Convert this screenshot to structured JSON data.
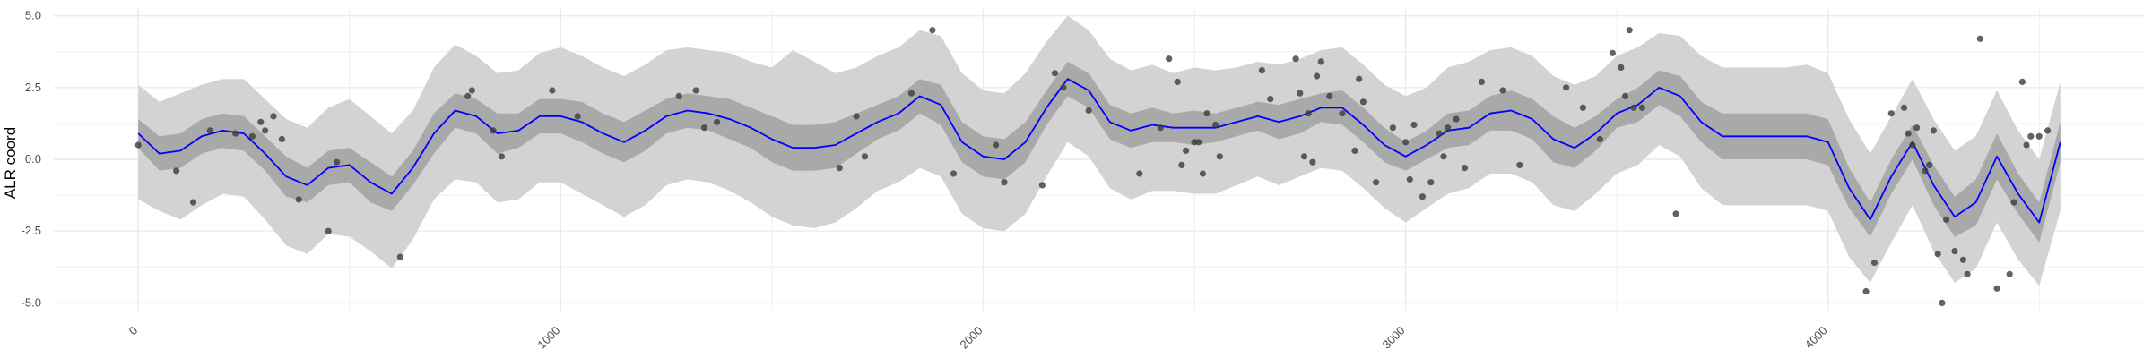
{
  "chart_data": {
    "type": "line",
    "title": "",
    "xlabel": "",
    "ylabel": "ALR coord",
    "xlim": [
      -200,
      4750
    ],
    "ylim": [
      -5.3,
      5.3
    ],
    "grid": true,
    "legend": "none",
    "x_ticks": [
      0,
      1000,
      2000,
      3000,
      4000
    ],
    "x_tick_labels": [
      "0",
      "1000",
      "2000",
      "3000",
      "4000"
    ],
    "y_ticks": [
      -5.0,
      -2.5,
      0.0,
      2.5,
      5.0
    ],
    "y_tick_labels": [
      "-5.0",
      "-2.5",
      "0.0",
      "2.5",
      "5.0"
    ],
    "colors": {
      "mean_line": "#0000ff",
      "inner_band": "#a9a9a9",
      "outer_band": "#d3d3d3",
      "points": "#3c3c3c",
      "grid": "#ebebeb"
    },
    "series": [
      {
        "kind": "mean",
        "x": [
          0,
          50,
          100,
          150,
          200,
          250,
          300,
          350,
          400,
          450,
          500,
          550,
          600,
          650,
          700,
          750,
          800,
          850,
          900,
          950,
          1000,
          1050,
          1100,
          1150,
          1200,
          1250,
          1300,
          1350,
          1400,
          1450,
          1500,
          1550,
          1600,
          1650,
          1700,
          1750,
          1800,
          1850,
          1900,
          1950,
          2000,
          2050,
          2100,
          2150,
          2200,
          2250,
          2300,
          2350,
          2400,
          2450,
          2500,
          2550,
          2600,
          2650,
          2700,
          2750,
          2800,
          2850,
          2900,
          2950,
          3000,
          3050,
          3100,
          3150,
          3200,
          3250,
          3300,
          3350,
          3400,
          3450,
          3500,
          3550,
          3600,
          3650,
          3700,
          3750,
          3800,
          3850,
          3900,
          3950,
          4000,
          4050,
          4100,
          4150,
          4200,
          4250,
          4300,
          4350,
          4400,
          4450,
          4500,
          4550
        ],
        "y": [
          0.9,
          0.2,
          0.3,
          0.8,
          1.0,
          0.9,
          0.2,
          -0.6,
          -0.9,
          -0.3,
          -0.2,
          -0.8,
          -1.2,
          -0.3,
          0.9,
          1.7,
          1.5,
          0.9,
          1.0,
          1.5,
          1.5,
          1.3,
          0.9,
          0.6,
          1.0,
          1.5,
          1.7,
          1.6,
          1.4,
          1.1,
          0.7,
          0.4,
          0.4,
          0.5,
          0.9,
          1.3,
          1.6,
          2.2,
          1.9,
          0.6,
          0.1,
          0.0,
          0.6,
          1.8,
          2.8,
          2.4,
          1.3,
          1.0,
          1.2,
          1.1,
          1.1,
          1.1,
          1.3,
          1.5,
          1.3,
          1.5,
          1.8,
          1.8,
          1.2,
          0.5,
          0.1,
          0.5,
          1.0,
          1.1,
          1.6,
          1.7,
          1.4,
          0.7,
          0.4,
          0.9,
          1.6,
          1.9,
          2.5,
          2.2,
          1.3,
          0.8,
          0.8,
          0.8,
          0.8,
          0.8,
          0.6,
          -1.0,
          -2.1,
          -0.6,
          0.6,
          -0.9,
          -2.0,
          -1.5,
          0.1,
          -1.2,
          -2.2,
          0.6
        ]
      },
      {
        "kind": "band-50",
        "x": [
          0,
          50,
          100,
          150,
          200,
          250,
          300,
          350,
          400,
          450,
          500,
          550,
          600,
          650,
          700,
          750,
          800,
          850,
          900,
          950,
          1000,
          1050,
          1100,
          1150,
          1200,
          1250,
          1300,
          1350,
          1400,
          1450,
          1500,
          1550,
          1600,
          1650,
          1700,
          1750,
          1800,
          1850,
          1900,
          1950,
          2000,
          2050,
          2100,
          2150,
          2200,
          2250,
          2300,
          2350,
          2400,
          2450,
          2500,
          2550,
          2600,
          2650,
          2700,
          2750,
          2800,
          2850,
          2900,
          2950,
          3000,
          3050,
          3100,
          3150,
          3200,
          3250,
          3300,
          3350,
          3400,
          3450,
          3500,
          3550,
          3600,
          3650,
          3700,
          3750,
          3800,
          3850,
          3900,
          3950,
          4000,
          4050,
          4100,
          4150,
          4200,
          4250,
          4300,
          4350,
          4400,
          4450,
          4500,
          4550
        ],
        "lower": [
          0.4,
          -0.4,
          -0.3,
          0.2,
          0.4,
          0.3,
          -0.4,
          -1.3,
          -1.5,
          -0.9,
          -0.8,
          -1.5,
          -1.8,
          -0.9,
          0.2,
          1.1,
          0.9,
          0.2,
          0.4,
          0.9,
          0.9,
          0.6,
          0.2,
          -0.1,
          0.3,
          0.9,
          1.1,
          1.0,
          0.7,
          0.4,
          -0.1,
          -0.4,
          -0.4,
          -0.3,
          0.2,
          0.7,
          1.0,
          1.6,
          1.2,
          -0.1,
          -0.6,
          -0.7,
          -0.1,
          1.2,
          2.2,
          1.8,
          0.7,
          0.4,
          0.6,
          0.6,
          0.5,
          0.6,
          0.8,
          1.0,
          0.7,
          0.9,
          1.3,
          1.2,
          0.6,
          -0.1,
          -0.4,
          0.0,
          0.4,
          0.5,
          1.0,
          1.0,
          0.7,
          -0.1,
          -0.3,
          0.3,
          1.1,
          1.3,
          1.9,
          1.5,
          0.6,
          0.0,
          0.0,
          0.0,
          0.0,
          0.0,
          -0.2,
          -1.7,
          -2.7,
          -1.2,
          0.0,
          -1.6,
          -2.7,
          -2.3,
          -0.7,
          -1.9,
          -2.9,
          -0.1
        ],
        "upper": [
          1.4,
          0.8,
          0.9,
          1.4,
          1.6,
          1.5,
          0.8,
          0.1,
          -0.3,
          0.3,
          0.4,
          -0.1,
          -0.6,
          0.3,
          1.6,
          2.3,
          2.1,
          1.6,
          1.6,
          2.1,
          2.1,
          2.0,
          1.6,
          1.3,
          1.7,
          2.1,
          2.3,
          2.2,
          2.1,
          1.8,
          1.5,
          1.2,
          1.2,
          1.3,
          1.6,
          1.9,
          2.2,
          2.8,
          2.6,
          1.3,
          0.8,
          0.7,
          1.3,
          2.4,
          3.4,
          3.0,
          1.9,
          1.6,
          1.8,
          1.6,
          1.7,
          1.6,
          1.8,
          2.0,
          1.9,
          2.1,
          2.3,
          2.4,
          1.8,
          1.1,
          0.6,
          1.0,
          1.6,
          1.7,
          2.2,
          2.4,
          2.1,
          1.5,
          1.1,
          1.5,
          2.1,
          2.5,
          3.1,
          2.9,
          2.0,
          1.6,
          1.6,
          1.6,
          1.6,
          1.6,
          1.4,
          -0.3,
          -1.5,
          0.0,
          1.2,
          -0.2,
          -1.3,
          -0.7,
          0.9,
          -0.5,
          -1.5,
          1.3
        ]
      },
      {
        "kind": "band-95",
        "x": [
          0,
          50,
          100,
          150,
          200,
          250,
          300,
          350,
          400,
          450,
          500,
          550,
          600,
          650,
          700,
          750,
          800,
          850,
          900,
          950,
          1000,
          1050,
          1100,
          1150,
          1200,
          1250,
          1300,
          1350,
          1400,
          1450,
          1500,
          1550,
          1600,
          1650,
          1700,
          1750,
          1800,
          1850,
          1900,
          1950,
          2000,
          2050,
          2100,
          2150,
          2200,
          2250,
          2300,
          2350,
          2400,
          2450,
          2500,
          2550,
          2600,
          2650,
          2700,
          2750,
          2800,
          2850,
          2900,
          2950,
          3000,
          3050,
          3100,
          3150,
          3200,
          3250,
          3300,
          3350,
          3400,
          3450,
          3500,
          3550,
          3600,
          3650,
          3700,
          3750,
          3800,
          3850,
          3900,
          3950,
          4000,
          4050,
          4100,
          4150,
          4200,
          4250,
          4300,
          4350,
          4400,
          4450,
          4500,
          4550
        ],
        "lower": [
          -1.4,
          -1.8,
          -2.1,
          -1.6,
          -1.2,
          -1.3,
          -2.1,
          -3.0,
          -3.3,
          -2.6,
          -2.7,
          -3.2,
          -3.8,
          -2.8,
          -1.4,
          -0.7,
          -0.8,
          -1.5,
          -1.4,
          -0.8,
          -0.8,
          -1.2,
          -1.6,
          -2.0,
          -1.6,
          -0.9,
          -0.7,
          -0.8,
          -1.1,
          -1.5,
          -2.0,
          -2.3,
          -2.4,
          -2.2,
          -1.7,
          -1.1,
          -0.8,
          -0.3,
          -0.6,
          -1.9,
          -2.4,
          -2.5,
          -1.9,
          -0.6,
          0.6,
          0.1,
          -1.0,
          -1.4,
          -1.1,
          -1.1,
          -1.2,
          -1.2,
          -0.9,
          -0.6,
          -0.9,
          -0.6,
          -0.3,
          -0.4,
          -1.0,
          -1.7,
          -2.2,
          -1.7,
          -1.2,
          -1.0,
          -0.5,
          -0.5,
          -0.8,
          -1.6,
          -1.8,
          -1.2,
          -0.5,
          -0.2,
          0.5,
          0.1,
          -1.0,
          -1.6,
          -1.6,
          -1.6,
          -1.6,
          -1.6,
          -1.8,
          -3.4,
          -4.3,
          -2.9,
          -1.6,
          -3.2,
          -4.3,
          -3.8,
          -2.2,
          -3.5,
          -4.4,
          -1.8
        ],
        "upper": [
          2.6,
          2.0,
          2.3,
          2.6,
          2.8,
          2.8,
          2.1,
          1.4,
          1.1,
          1.8,
          2.1,
          1.5,
          0.9,
          1.7,
          3.2,
          4.0,
          3.6,
          3.0,
          3.1,
          3.7,
          3.9,
          3.6,
          3.2,
          2.9,
          3.3,
          3.8,
          3.9,
          3.8,
          3.7,
          3.4,
          3.2,
          3.8,
          3.4,
          3.0,
          3.2,
          3.6,
          3.9,
          4.5,
          4.3,
          3.0,
          2.4,
          2.3,
          3.0,
          4.1,
          5.0,
          4.5,
          3.5,
          3.1,
          3.3,
          3.0,
          3.2,
          3.1,
          3.2,
          3.4,
          3.3,
          3.5,
          3.8,
          3.9,
          3.3,
          2.6,
          2.2,
          2.5,
          3.2,
          3.4,
          3.8,
          3.9,
          3.6,
          2.9,
          2.6,
          2.9,
          3.6,
          3.9,
          4.4,
          4.3,
          3.6,
          3.2,
          3.2,
          3.2,
          3.2,
          3.3,
          3.0,
          1.4,
          0.2,
          1.5,
          2.8,
          1.4,
          0.3,
          0.8,
          2.4,
          1.0,
          0.0,
          2.7
        ]
      },
      {
        "kind": "points",
        "x": [
          0,
          90,
          130,
          170,
          230,
          270,
          290,
          300,
          320,
          340,
          380,
          450,
          470,
          620,
          780,
          790,
          840,
          860,
          980,
          1040,
          1280,
          1320,
          1340,
          1370,
          1660,
          1700,
          1720,
          1830,
          1880,
          1930,
          2030,
          2050,
          2140,
          2170,
          2190,
          2250,
          2370,
          2420,
          2440,
          2460,
          2470,
          2480,
          2500,
          2510,
          2520,
          2530,
          2550,
          2560,
          2660,
          2680,
          2740,
          2750,
          2760,
          2770,
          2780,
          2790,
          2800,
          2820,
          2850,
          2880,
          2890,
          2900,
          2930,
          2970,
          3000,
          3010,
          3020,
          3040,
          3060,
          3080,
          3090,
          3100,
          3120,
          3140,
          3180,
          3230,
          3270,
          3380,
          3420,
          3460,
          3490,
          3510,
          3520,
          3530,
          3540,
          3560,
          3640,
          4090,
          4110,
          4150,
          4180,
          4190,
          4200,
          4210,
          4230,
          4240,
          4250,
          4260,
          4270,
          4280,
          4300,
          4320,
          4330,
          4360,
          4400,
          4430,
          4440,
          4460,
          4470,
          4480,
          4500,
          4520
        ],
        "y": [
          0.5,
          -0.4,
          -1.5,
          1.0,
          0.9,
          0.8,
          1.3,
          1.0,
          1.5,
          0.7,
          -1.4,
          -2.5,
          -0.1,
          -3.4,
          2.2,
          2.4,
          1.0,
          0.1,
          2.4,
          1.5,
          2.2,
          2.4,
          1.1,
          1.3,
          -0.3,
          1.5,
          0.1,
          2.3,
          4.5,
          -0.5,
          0.5,
          -0.8,
          -0.9,
          3.0,
          2.5,
          1.7,
          -0.5,
          1.1,
          3.5,
          2.7,
          -0.2,
          0.3,
          0.6,
          0.6,
          -0.5,
          1.6,
          1.2,
          0.1,
          3.1,
          2.1,
          3.5,
          2.3,
          0.1,
          1.6,
          -0.1,
          2.9,
          3.4,
          2.2,
          1.6,
          0.3,
          2.8,
          2.0,
          -0.8,
          1.1,
          0.6,
          -0.7,
          1.2,
          -1.3,
          -0.8,
          0.9,
          0.1,
          1.1,
          1.4,
          -0.3,
          2.7,
          2.4,
          -0.2,
          2.5,
          1.8,
          0.7,
          3.7,
          3.2,
          2.2,
          4.5,
          1.8,
          1.8,
          -1.9,
          -4.6,
          -3.6,
          1.6,
          1.8,
          0.9,
          0.5,
          1.1,
          -0.4,
          -0.2,
          1.0,
          -3.3,
          -5.0,
          -2.1,
          -3.2,
          -3.5,
          -4.0,
          4.2,
          -4.5,
          -4.0,
          -1.5,
          2.7,
          0.5,
          0.8,
          0.8,
          1.0
        ]
      }
    ]
  }
}
